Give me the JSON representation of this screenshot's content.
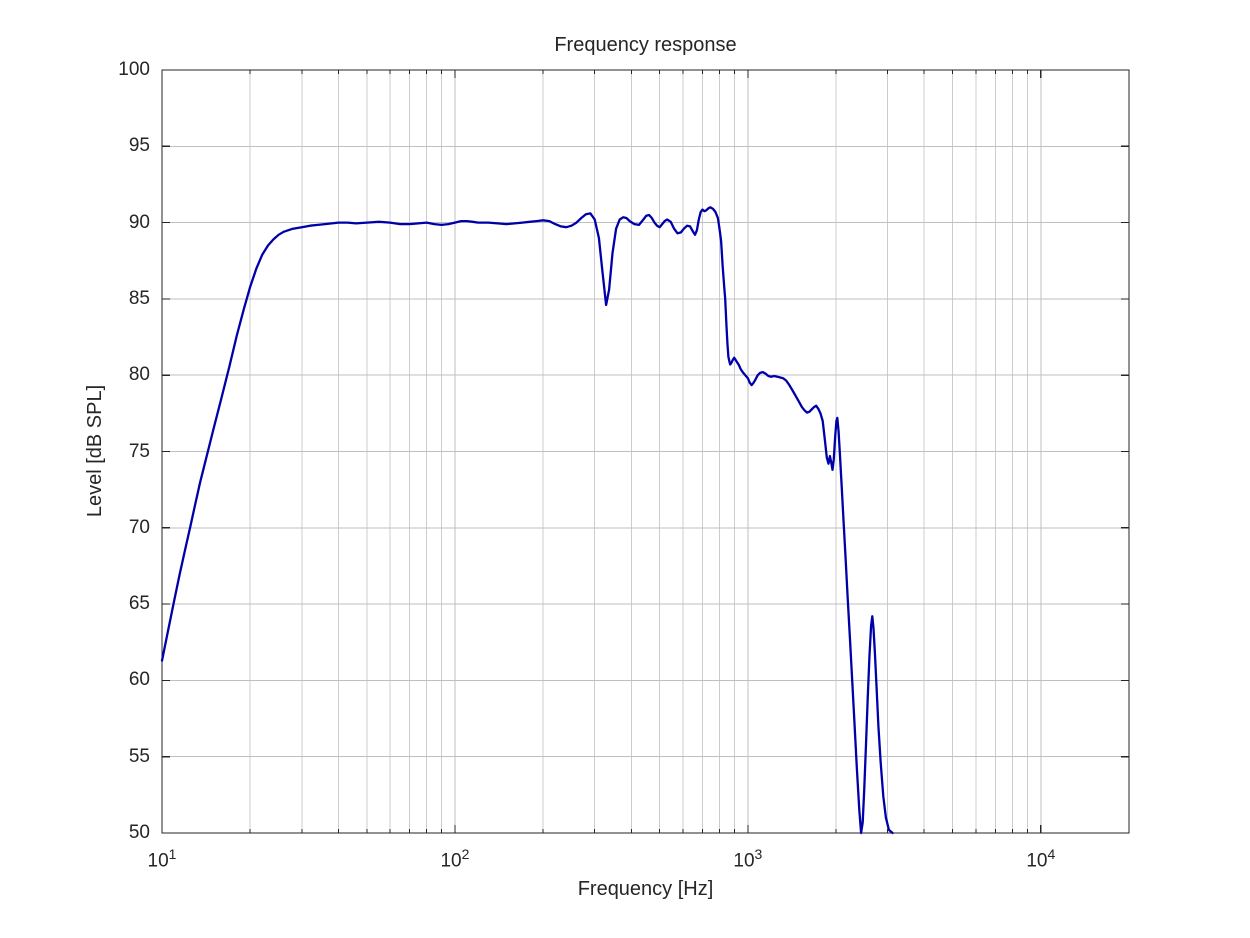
{
  "figure": {
    "background": "#ffffff"
  },
  "chart_data": {
    "type": "line",
    "title": "Frequency response",
    "xlabel": "Frequency [Hz]",
    "ylabel": "Level [dB SPL]",
    "x_scale": "log",
    "xlim": [
      10,
      20000
    ],
    "ylim": [
      50,
      100
    ],
    "xticks": [
      {
        "value": 10,
        "label": "10^1"
      },
      {
        "value": 100,
        "label": "10^2"
      },
      {
        "value": 1000,
        "label": "10^3"
      },
      {
        "value": 10000,
        "label": "10^4"
      }
    ],
    "yticks": [
      50,
      55,
      60,
      65,
      70,
      75,
      80,
      85,
      90,
      95,
      100
    ],
    "grid": true,
    "minor_grid_x": true,
    "legend": "none",
    "colors": {
      "line": "#0000AA",
      "grid_major": "#bfbfbf",
      "grid_minor": "#cccccc",
      "axis": "#262626",
      "text": "#262626"
    },
    "series": [
      {
        "name": "frequency response",
        "points": [
          [
            10,
            61.3
          ],
          [
            10.5,
            63.3
          ],
          [
            11,
            65.2
          ],
          [
            11.5,
            67.0
          ],
          [
            12,
            68.6
          ],
          [
            12.5,
            70.1
          ],
          [
            13,
            71.6
          ],
          [
            13.5,
            73.0
          ],
          [
            14,
            74.2
          ],
          [
            15,
            76.5
          ],
          [
            16,
            78.6
          ],
          [
            17,
            80.6
          ],
          [
            18,
            82.6
          ],
          [
            19,
            84.3
          ],
          [
            20,
            85.8
          ],
          [
            21,
            87.0
          ],
          [
            22,
            87.9
          ],
          [
            23,
            88.5
          ],
          [
            24,
            88.9
          ],
          [
            25,
            89.2
          ],
          [
            26,
            89.4
          ],
          [
            27,
            89.5
          ],
          [
            28,
            89.6
          ],
          [
            30,
            89.7
          ],
          [
            32,
            89.8
          ],
          [
            34,
            89.85
          ],
          [
            36,
            89.9
          ],
          [
            38,
            89.95
          ],
          [
            40,
            90.0
          ],
          [
            43,
            90.0
          ],
          [
            46,
            89.95
          ],
          [
            50,
            90.0
          ],
          [
            55,
            90.05
          ],
          [
            60,
            90.0
          ],
          [
            65,
            89.9
          ],
          [
            70,
            89.9
          ],
          [
            75,
            89.95
          ],
          [
            80,
            90.0
          ],
          [
            85,
            89.9
          ],
          [
            90,
            89.85
          ],
          [
            95,
            89.9
          ],
          [
            100,
            90.0
          ],
          [
            105,
            90.1
          ],
          [
            110,
            90.1
          ],
          [
            115,
            90.05
          ],
          [
            120,
            90.0
          ],
          [
            130,
            90.0
          ],
          [
            140,
            89.95
          ],
          [
            150,
            89.9
          ],
          [
            160,
            89.95
          ],
          [
            170,
            90.0
          ],
          [
            180,
            90.05
          ],
          [
            190,
            90.1
          ],
          [
            200,
            90.15
          ],
          [
            210,
            90.1
          ],
          [
            220,
            89.9
          ],
          [
            230,
            89.75
          ],
          [
            240,
            89.7
          ],
          [
            250,
            89.8
          ],
          [
            260,
            90.0
          ],
          [
            270,
            90.3
          ],
          [
            280,
            90.55
          ],
          [
            290,
            90.6
          ],
          [
            300,
            90.2
          ],
          [
            310,
            89.0
          ],
          [
            318,
            87.0
          ],
          [
            328,
            84.6
          ],
          [
            336,
            85.6
          ],
          [
            345,
            88.0
          ],
          [
            355,
            89.6
          ],
          [
            365,
            90.2
          ],
          [
            375,
            90.35
          ],
          [
            385,
            90.3
          ],
          [
            395,
            90.1
          ],
          [
            410,
            89.9
          ],
          [
            425,
            89.85
          ],
          [
            440,
            90.2
          ],
          [
            450,
            90.45
          ],
          [
            460,
            90.5
          ],
          [
            470,
            90.3
          ],
          [
            480,
            90.0
          ],
          [
            490,
            89.8
          ],
          [
            500,
            89.7
          ],
          [
            510,
            89.9
          ],
          [
            520,
            90.1
          ],
          [
            530,
            90.2
          ],
          [
            545,
            90.05
          ],
          [
            560,
            89.6
          ],
          [
            575,
            89.3
          ],
          [
            590,
            89.35
          ],
          [
            605,
            89.6
          ],
          [
            620,
            89.8
          ],
          [
            635,
            89.75
          ],
          [
            650,
            89.4
          ],
          [
            660,
            89.2
          ],
          [
            670,
            89.5
          ],
          [
            680,
            90.2
          ],
          [
            690,
            90.7
          ],
          [
            700,
            90.85
          ],
          [
            710,
            90.75
          ],
          [
            720,
            90.8
          ],
          [
            735,
            90.95
          ],
          [
            745,
            91.0
          ],
          [
            760,
            90.9
          ],
          [
            775,
            90.7
          ],
          [
            790,
            90.3
          ],
          [
            800,
            89.6
          ],
          [
            810,
            88.8
          ],
          [
            820,
            87.2
          ],
          [
            830,
            85.8
          ],
          [
            837,
            85.0
          ],
          [
            845,
            83.2
          ],
          [
            852,
            82.0
          ],
          [
            858,
            81.2
          ],
          [
            865,
            80.9
          ],
          [
            870,
            80.7
          ],
          [
            878,
            80.8
          ],
          [
            888,
            81.0
          ],
          [
            898,
            81.15
          ],
          [
            908,
            81.0
          ],
          [
            918,
            80.85
          ],
          [
            930,
            80.7
          ],
          [
            945,
            80.4
          ],
          [
            960,
            80.2
          ],
          [
            980,
            80.0
          ],
          [
            1000,
            79.8
          ],
          [
            1015,
            79.5
          ],
          [
            1030,
            79.35
          ],
          [
            1045,
            79.5
          ],
          [
            1060,
            79.7
          ],
          [
            1080,
            80.0
          ],
          [
            1100,
            80.15
          ],
          [
            1125,
            80.2
          ],
          [
            1150,
            80.1
          ],
          [
            1175,
            79.95
          ],
          [
            1200,
            79.9
          ],
          [
            1230,
            79.95
          ],
          [
            1260,
            79.9
          ],
          [
            1290,
            79.85
          ],
          [
            1320,
            79.8
          ],
          [
            1350,
            79.65
          ],
          [
            1380,
            79.4
          ],
          [
            1410,
            79.1
          ],
          [
            1440,
            78.8
          ],
          [
            1470,
            78.5
          ],
          [
            1500,
            78.2
          ],
          [
            1530,
            77.9
          ],
          [
            1560,
            77.7
          ],
          [
            1590,
            77.55
          ],
          [
            1620,
            77.6
          ],
          [
            1650,
            77.75
          ],
          [
            1680,
            77.9
          ],
          [
            1710,
            78.0
          ],
          [
            1740,
            77.8
          ],
          [
            1770,
            77.5
          ],
          [
            1800,
            77.0
          ],
          [
            1830,
            75.8
          ],
          [
            1860,
            74.6
          ],
          [
            1885,
            74.2
          ],
          [
            1905,
            74.7
          ],
          [
            1925,
            74.3
          ],
          [
            1945,
            73.8
          ],
          [
            1965,
            74.5
          ],
          [
            1985,
            75.9
          ],
          [
            2005,
            77.0
          ],
          [
            2020,
            77.2
          ],
          [
            2040,
            76.3
          ],
          [
            2065,
            74.6
          ],
          [
            2090,
            72.7
          ],
          [
            2120,
            70.5
          ],
          [
            2155,
            68.0
          ],
          [
            2190,
            65.5
          ],
          [
            2230,
            62.8
          ],
          [
            2270,
            60.0
          ],
          [
            2310,
            57.3
          ],
          [
            2355,
            54.3
          ],
          [
            2400,
            51.5
          ],
          [
            2435,
            50.0
          ],
          [
            2465,
            50.7
          ],
          [
            2495,
            52.8
          ],
          [
            2530,
            55.8
          ],
          [
            2565,
            58.8
          ],
          [
            2600,
            61.5
          ],
          [
            2635,
            63.6
          ],
          [
            2660,
            64.2
          ],
          [
            2685,
            63.4
          ],
          [
            2715,
            61.8
          ],
          [
            2750,
            59.5
          ],
          [
            2790,
            57.0
          ],
          [
            2840,
            54.6
          ],
          [
            2900,
            52.4
          ],
          [
            2960,
            51.0
          ],
          [
            3030,
            50.2
          ],
          [
            3120,
            50.0
          ]
        ]
      }
    ]
  }
}
